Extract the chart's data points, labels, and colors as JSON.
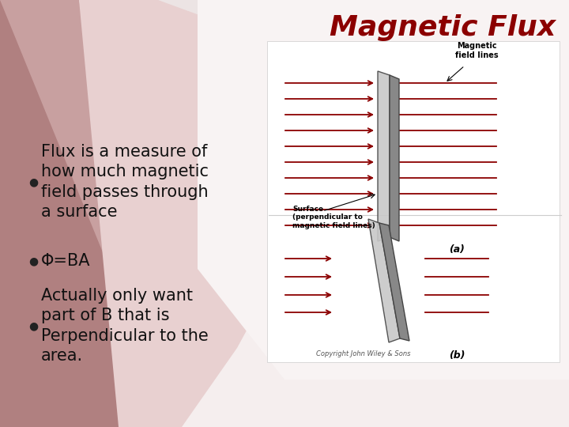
{
  "title": "Magnetic Flux",
  "title_color": "#8B0000",
  "slide_bg": "#FFFFFF",
  "bullet1": "Flux is a measure of\nhow much magnetic\nfield passes through\na surface",
  "bullet2": "Φ=BA",
  "bullet3": "Actually only want\npart of B that is\nPerpendicular to the\narea.",
  "text_color": "#111111",
  "font_size_title": 26,
  "font_size_bullet": 15,
  "copyright": "Copyright John Wiley & Sons",
  "label_a": "(a)",
  "label_b": "(b)",
  "bg_dark": "#b08080",
  "bg_mid": "#c8a0a0",
  "bg_light": "#e8d0d0",
  "bg_white": "#f5eeee",
  "diagram_bg": "#f0eeee"
}
